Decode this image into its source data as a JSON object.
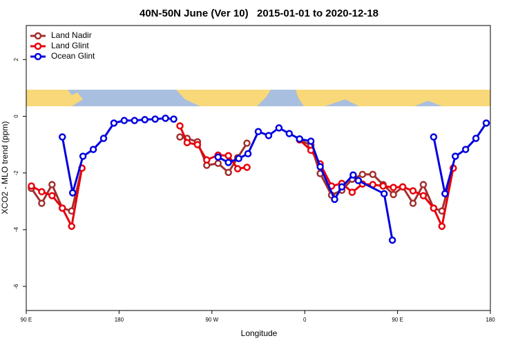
{
  "chart_data": {
    "type": "line",
    "title": "40N-50N June (Ver 10)   2015-01-01 to 2020-12-18",
    "xlabel": "Longitude",
    "ylabel": "XCO2 - MLO trend (ppm)",
    "xlim": [
      90,
      540
    ],
    "xticks": [
      {
        "value": 90,
        "label": "90 E"
      },
      180,
      {
        "value": 270,
        "label": "90 W"
      },
      {
        "value": 360,
        "label": "0"
      },
      {
        "value": 450,
        "label": "90 E"
      },
      {
        "value": 540,
        "label": "180"
      }
    ],
    "ylim": [
      -6.85,
      3.2
    ],
    "yticks": [
      -6,
      -4,
      -2,
      0,
      2
    ],
    "legend": "top-left",
    "series": [
      {
        "name": "Land Nadir",
        "color": "#a0302e",
        "x": [
          95,
          105,
          115,
          125,
          134,
          144,
          null,
          239,
          246,
          256,
          265,
          276,
          286,
          295,
          304,
          null,
          355,
          366,
          375,
          386,
          396,
          406,
          416,
          426,
          436,
          446,
          455,
          465,
          475,
          485,
          493,
          504
        ],
        "values": [
          -2.54,
          -3.07,
          -2.41,
          -3.24,
          -3.34,
          -1.83,
          null,
          -0.73,
          -0.78,
          -0.9,
          -1.73,
          -1.66,
          -1.98,
          -1.46,
          -0.95,
          null,
          -0.83,
          -1.02,
          -2.02,
          -2.78,
          -2.61,
          -2.22,
          -2.05,
          -2.05,
          -2.41,
          -2.76,
          -2.49,
          -3.07,
          -2.41,
          -3.24,
          -3.34,
          -1.83
        ]
      },
      {
        "name": "Land Glint",
        "color": "#e8000b",
        "x": [
          95,
          105,
          115,
          125,
          134,
          144,
          null,
          239,
          246,
          256,
          265,
          276,
          286,
          295,
          304,
          null,
          355,
          366,
          375,
          386,
          396,
          406,
          416,
          426,
          436,
          446,
          455,
          465,
          475,
          485,
          493,
          504
        ],
        "values": [
          -2.46,
          -2.66,
          -2.8,
          -3.24,
          -3.88,
          -1.83,
          null,
          -0.34,
          -0.93,
          -1.0,
          -1.54,
          -1.37,
          -1.39,
          -1.85,
          -1.8,
          null,
          -0.83,
          -1.2,
          -1.68,
          -2.46,
          -2.37,
          -2.68,
          -2.39,
          -2.41,
          -2.46,
          -2.51,
          -2.49,
          -2.63,
          -2.8,
          -3.24,
          -3.88,
          -1.83
        ]
      },
      {
        "name": "Ocean Glint",
        "color": "#0000e0",
        "x": [
          125,
          135,
          145,
          155,
          165,
          175,
          185,
          195,
          205,
          215,
          225,
          233,
          null,
          276,
          286,
          296,
          305,
          315,
          325,
          335,
          345,
          355,
          366,
          375,
          389,
          396,
          407,
          412,
          437,
          445,
          null,
          485,
          496,
          506,
          516,
          526,
          536
        ],
        "values": [
          -0.73,
          -2.7,
          -1.41,
          -1.17,
          -0.78,
          -0.24,
          -0.15,
          -0.15,
          -0.12,
          -0.1,
          -0.07,
          -0.1,
          null,
          -1.44,
          -1.63,
          -1.49,
          -1.32,
          -0.54,
          -0.68,
          -0.41,
          -0.61,
          -0.8,
          -0.88,
          -1.78,
          -2.93,
          -2.49,
          -2.07,
          -2.27,
          -2.73,
          -4.37,
          null,
          -0.73,
          -2.73,
          -1.41,
          -1.17,
          -0.78,
          -0.24
        ]
      }
    ]
  }
}
